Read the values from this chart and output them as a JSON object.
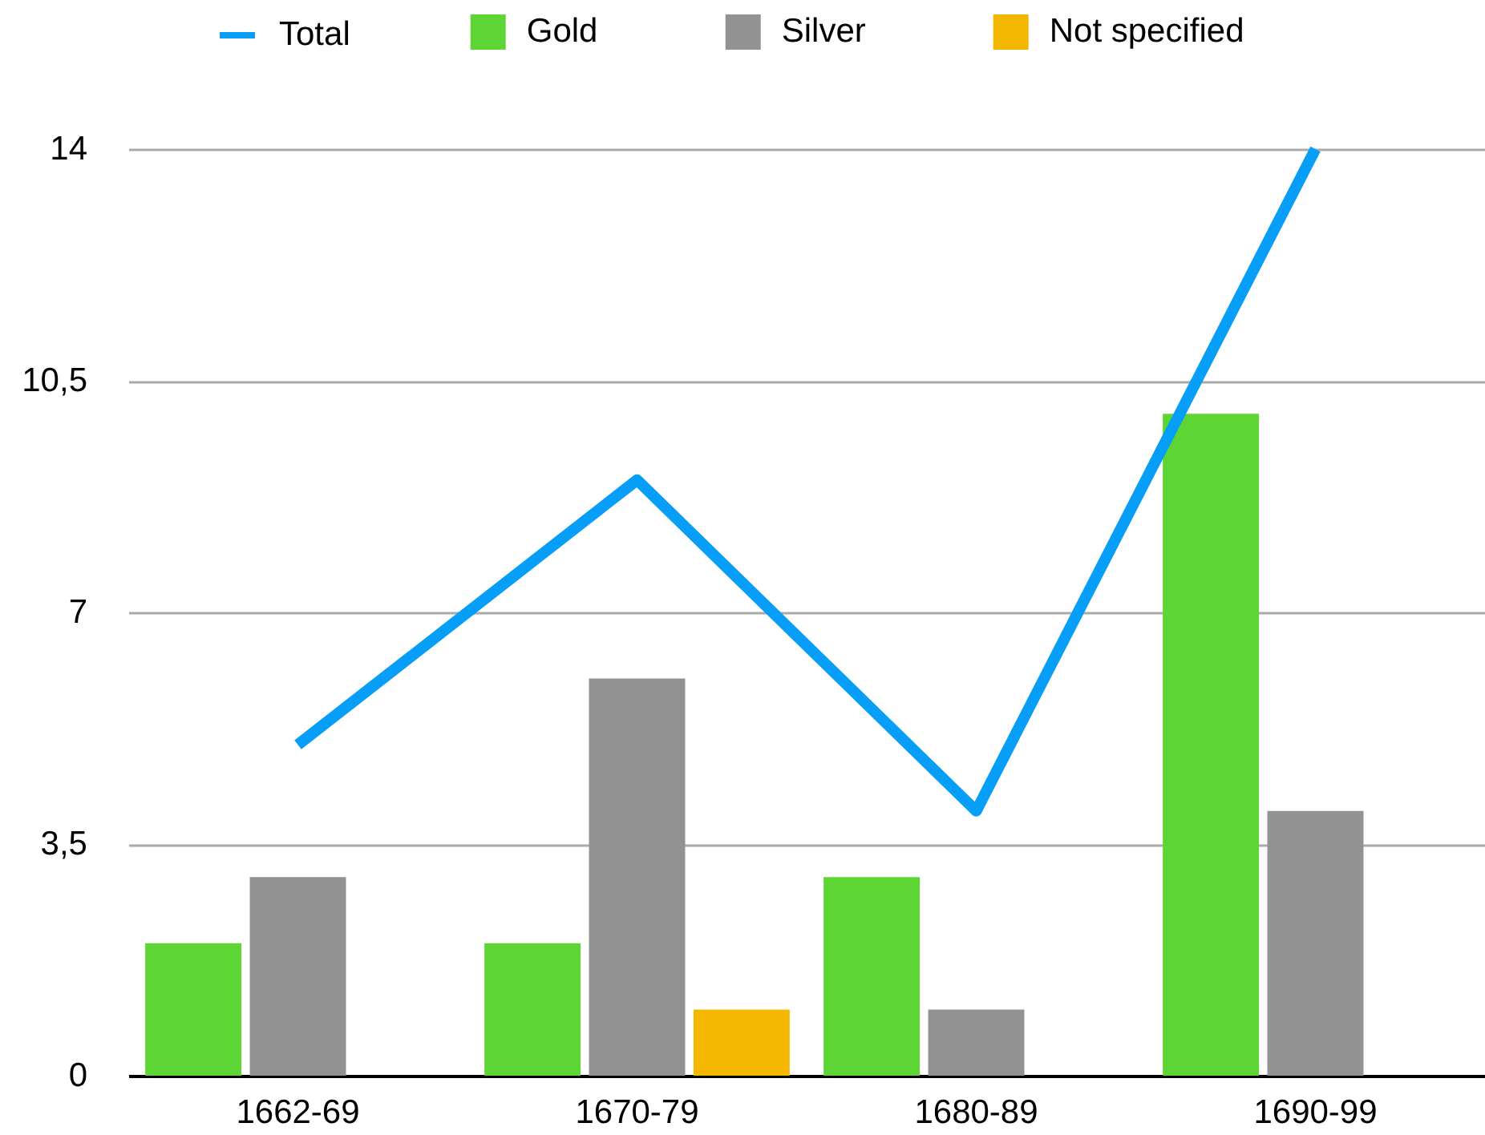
{
  "chart_data": {
    "type": "bar",
    "categories": [
      "1662-69",
      "1670-79",
      "1680-89",
      "1690-99"
    ],
    "series": [
      {
        "name": "Total",
        "type": "line",
        "color": "#069ef7",
        "values": [
          5,
          9,
          4,
          14
        ]
      },
      {
        "name": "Gold",
        "color": "#5dd535",
        "values": [
          2,
          2,
          3,
          10
        ]
      },
      {
        "name": "Silver",
        "color": "#929292",
        "values": [
          3,
          6,
          1,
          4
        ]
      },
      {
        "name": "Not specified",
        "color": "#f3b700",
        "values": [
          null,
          1,
          null,
          null
        ]
      }
    ],
    "ylim": [
      0,
      14
    ],
    "yticks": [
      0,
      {
        "value": 3.5,
        "label": "3,5"
      },
      7,
      {
        "value": 10.5,
        "label": "10,5"
      },
      14
    ],
    "grid": "y",
    "legend": "top"
  }
}
